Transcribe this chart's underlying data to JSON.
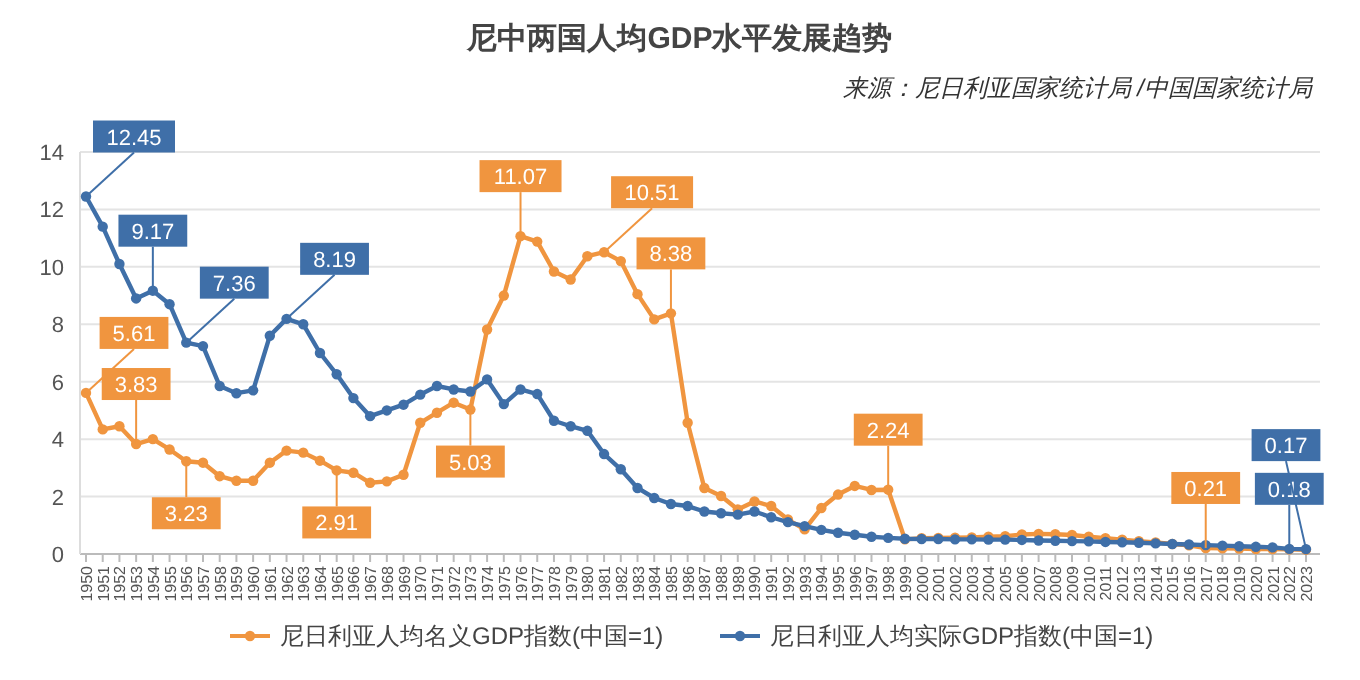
{
  "chart_data": {
    "type": "line",
    "title": "尼中两国人均GDP水平发展趋势",
    "annotations": [
      "来源：尼日利亚国家统计局 /中国国家统计局"
    ],
    "categories": [
      "1950",
      "1951",
      "1952",
      "1953",
      "1954",
      "1955",
      "1956",
      "1957",
      "1958",
      "1959",
      "1960",
      "1961",
      "1962",
      "1963",
      "1964",
      "1965",
      "1966",
      "1967",
      "1968",
      "1969",
      "1970",
      "1971",
      "1972",
      "1973",
      "1974",
      "1975",
      "1976",
      "1977",
      "1978",
      "1979",
      "1980",
      "1981",
      "1982",
      "1983",
      "1984",
      "1985",
      "1986",
      "1987",
      "1988",
      "1989",
      "1990",
      "1991",
      "1992",
      "1993",
      "1994",
      "1995",
      "1996",
      "1997",
      "1998",
      "1999",
      "2000",
      "2001",
      "2002",
      "2003",
      "2004",
      "2005",
      "2006",
      "2007",
      "2008",
      "2009",
      "2010",
      "2011",
      "2012",
      "2013",
      "2014",
      "2015",
      "2016",
      "2017",
      "2018",
      "2019",
      "2020",
      "2021",
      "2022",
      "2023"
    ],
    "ylim": [
      0,
      14
    ],
    "yticks": [
      0,
      2,
      4,
      6,
      8,
      10,
      12,
      14
    ],
    "grid": "y",
    "legend": "bottom",
    "marker": "circle",
    "line_style": "solid",
    "series": [
      {
        "name": "尼日利亚人均名义GDP指数(中国=1)",
        "color": "#f0953f",
        "values": [
          5.61,
          4.34,
          4.45,
          3.83,
          4.0,
          3.64,
          3.23,
          3.18,
          2.71,
          2.55,
          2.55,
          3.18,
          3.6,
          3.53,
          3.25,
          2.91,
          2.83,
          2.48,
          2.53,
          2.76,
          4.57,
          4.92,
          5.27,
          5.03,
          7.82,
          9.0,
          11.07,
          10.88,
          9.84,
          9.56,
          10.37,
          10.51,
          10.2,
          9.05,
          8.17,
          8.38,
          4.57,
          2.3,
          2.02,
          1.55,
          1.83,
          1.67,
          1.2,
          0.86,
          1.6,
          2.07,
          2.37,
          2.23,
          2.24,
          0.51,
          0.55,
          0.56,
          0.57,
          0.58,
          0.6,
          0.62,
          0.68,
          0.7,
          0.69,
          0.66,
          0.6,
          0.55,
          0.5,
          0.45,
          0.4,
          0.35,
          0.3,
          0.21,
          0.2,
          0.19,
          0.17,
          0.17,
          0.16,
          0.15
        ],
        "value_labels": [
          "5.61",
          null,
          null,
          "3.83",
          null,
          null,
          "3.23",
          null,
          null,
          null,
          null,
          null,
          null,
          null,
          null,
          "2.91",
          null,
          null,
          null,
          null,
          null,
          null,
          null,
          "5.03",
          null,
          null,
          "11.07",
          null,
          null,
          null,
          null,
          "10.51",
          null,
          null,
          null,
          "8.38",
          null,
          null,
          null,
          null,
          null,
          null,
          null,
          null,
          null,
          null,
          null,
          null,
          "2.24",
          null,
          null,
          null,
          null,
          null,
          null,
          null,
          null,
          null,
          null,
          null,
          null,
          null,
          null,
          null,
          null,
          null,
          null,
          "0.21",
          null,
          null,
          null,
          null,
          null,
          null
        ]
      },
      {
        "name": "尼日利亚人均实际GDP指数(中国=1)",
        "color": "#3f6fa8",
        "values": [
          12.45,
          11.4,
          10.1,
          8.9,
          9.17,
          8.7,
          7.36,
          7.24,
          5.85,
          5.6,
          5.7,
          7.6,
          8.19,
          8.0,
          7.0,
          6.26,
          5.43,
          4.8,
          5.0,
          5.2,
          5.55,
          5.85,
          5.73,
          5.66,
          6.08,
          5.22,
          5.73,
          5.57,
          4.64,
          4.45,
          4.29,
          3.48,
          2.95,
          2.3,
          1.95,
          1.74,
          1.67,
          1.48,
          1.42,
          1.37,
          1.48,
          1.28,
          1.11,
          0.97,
          0.84,
          0.74,
          0.67,
          0.6,
          0.56,
          0.53,
          0.52,
          0.52,
          0.51,
          0.51,
          0.5,
          0.5,
          0.49,
          0.47,
          0.46,
          0.45,
          0.44,
          0.42,
          0.41,
          0.39,
          0.37,
          0.35,
          0.33,
          0.31,
          0.29,
          0.27,
          0.25,
          0.23,
          0.18,
          0.17
        ],
        "value_labels": [
          "12.45",
          null,
          null,
          null,
          "9.17",
          null,
          "7.36",
          null,
          null,
          null,
          null,
          null,
          "8.19",
          null,
          null,
          null,
          null,
          null,
          null,
          null,
          null,
          null,
          null,
          null,
          null,
          null,
          null,
          null,
          null,
          null,
          null,
          null,
          null,
          null,
          null,
          null,
          null,
          null,
          null,
          null,
          null,
          null,
          null,
          null,
          null,
          null,
          null,
          null,
          null,
          null,
          null,
          null,
          null,
          null,
          null,
          null,
          null,
          null,
          null,
          null,
          null,
          null,
          null,
          null,
          null,
          null,
          null,
          null,
          null,
          null,
          null,
          null,
          "0.18",
          "0.17"
        ]
      }
    ]
  }
}
